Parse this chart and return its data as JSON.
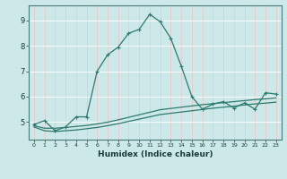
{
  "xlabel": "Humidex (Indice chaleur)",
  "background_color": "#cce8e8",
  "grid_color": "#b8d8d8",
  "line_color": "#2d7a6e",
  "x_ticks": [
    0,
    1,
    2,
    3,
    4,
    5,
    6,
    7,
    8,
    9,
    10,
    11,
    12,
    13,
    14,
    15,
    16,
    17,
    18,
    19,
    20,
    21,
    22,
    23
  ],
  "y_ticks": [
    5,
    6,
    7,
    8,
    9
  ],
  "xlim": [
    -0.5,
    23.5
  ],
  "ylim": [
    4.3,
    9.6
  ],
  "series1_x": [
    0,
    1,
    2,
    3,
    4,
    5,
    6,
    7,
    8,
    9,
    10,
    11,
    12,
    13,
    14,
    15,
    16,
    17,
    18,
    19,
    20,
    21,
    22,
    23
  ],
  "series1_y": [
    4.9,
    5.05,
    4.65,
    4.8,
    5.2,
    5.2,
    7.0,
    7.65,
    7.95,
    8.5,
    8.65,
    9.25,
    8.95,
    8.3,
    7.2,
    6.0,
    5.5,
    5.7,
    5.8,
    5.55,
    5.75,
    5.5,
    6.15,
    6.1
  ],
  "series2_x": [
    0,
    1,
    2,
    3,
    4,
    5,
    6,
    7,
    8,
    9,
    10,
    11,
    12,
    13,
    14,
    15,
    16,
    17,
    18,
    19,
    20,
    21,
    22,
    23
  ],
  "series2_y": [
    4.85,
    4.75,
    4.75,
    4.78,
    4.82,
    4.86,
    4.92,
    4.99,
    5.08,
    5.18,
    5.28,
    5.38,
    5.48,
    5.53,
    5.58,
    5.63,
    5.68,
    5.72,
    5.76,
    5.8,
    5.84,
    5.88,
    5.91,
    5.95
  ],
  "series3_x": [
    0,
    1,
    2,
    3,
    4,
    5,
    6,
    7,
    8,
    9,
    10,
    11,
    12,
    13,
    14,
    15,
    16,
    17,
    18,
    19,
    20,
    21,
    22,
    23
  ],
  "series3_y": [
    4.8,
    4.65,
    4.62,
    4.65,
    4.68,
    4.73,
    4.78,
    4.85,
    4.93,
    5.02,
    5.11,
    5.2,
    5.29,
    5.34,
    5.39,
    5.44,
    5.49,
    5.54,
    5.58,
    5.62,
    5.67,
    5.71,
    5.74,
    5.78
  ]
}
